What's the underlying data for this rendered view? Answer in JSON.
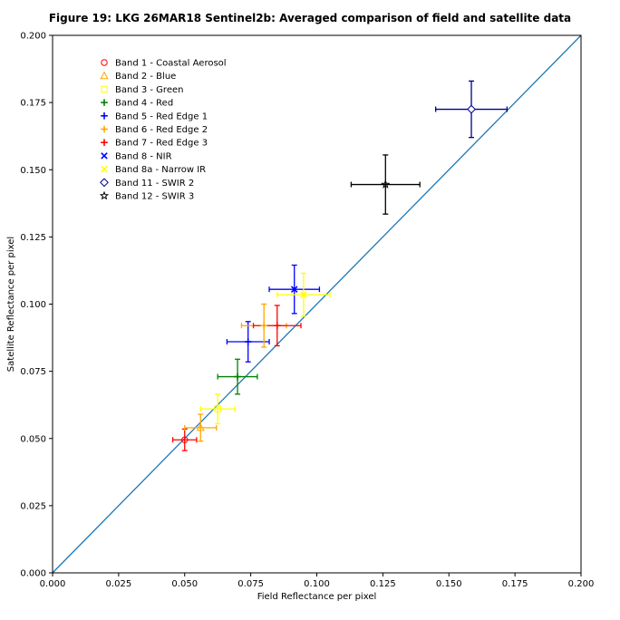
{
  "chart_data": {
    "type": "scatter",
    "title": "Figure 19: LKG 26MAR18  Sentinel2b: Averaged comparison of field and satellite data",
    "xlabel": "Field Reflectance per pixel",
    "ylabel": "Satellite Reflectance per pixel",
    "xlim": [
      0.0,
      0.2
    ],
    "ylim": [
      0.0,
      0.2
    ],
    "xticks": [
      "0.000",
      "0.025",
      "0.050",
      "0.075",
      "0.100",
      "0.125",
      "0.150",
      "0.175",
      "0.200"
    ],
    "yticks": [
      "0.000",
      "0.025",
      "0.050",
      "0.075",
      "0.100",
      "0.125",
      "0.150",
      "0.175",
      "0.200"
    ],
    "grid": false,
    "legend_position": "upper-left",
    "reference_line": {
      "from": [
        0.0,
        0.0
      ],
      "to": [
        0.2,
        0.2
      ],
      "color": "#1f77b4"
    },
    "series": [
      {
        "name": "Band 1 - Coastal Aerosol",
        "marker": "circle",
        "color": "#ff0000",
        "ecolor": "#ff0000",
        "x": 0.05,
        "y": 0.0495,
        "xerr": 0.0045,
        "yerr": 0.004
      },
      {
        "name": "Band 2 - Blue",
        "marker": "triangle",
        "color": "#ffa500",
        "ecolor": "#ffa500",
        "x": 0.056,
        "y": 0.054,
        "xerr": 0.006,
        "yerr": 0.005
      },
      {
        "name": "Band 3 - Green",
        "marker": "square",
        "color": "#ffff00",
        "ecolor": "#ffff00",
        "x": 0.0625,
        "y": 0.061,
        "xerr": 0.0065,
        "yerr": 0.0055
      },
      {
        "name": "Band 4 - Red",
        "marker": "plus",
        "color": "#008000",
        "ecolor": "#008000",
        "x": 0.07,
        "y": 0.073,
        "xerr": 0.0075,
        "yerr": 0.0065
      },
      {
        "name": "Band 5 - Red Edge 1",
        "marker": "plus",
        "color": "#0000ff",
        "ecolor": "#0000ff",
        "x": 0.074,
        "y": 0.086,
        "xerr": 0.008,
        "yerr": 0.0075
      },
      {
        "name": "Band 6 - Red Edge 2",
        "marker": "plus",
        "color": "#ffa500",
        "ecolor": "#ffa500",
        "x": 0.08,
        "y": 0.092,
        "xerr": 0.0085,
        "yerr": 0.008
      },
      {
        "name": "Band 7 - Red Edge 3",
        "marker": "plus",
        "color": "#ff0000",
        "ecolor": "#ff0000",
        "x": 0.085,
        "y": 0.092,
        "xerr": 0.009,
        "yerr": 0.0075
      },
      {
        "name": "Band 8 - NIR",
        "marker": "x",
        "color": "#0000ff",
        "ecolor": "#0000ff",
        "x": 0.0915,
        "y": 0.1055,
        "xerr": 0.0095,
        "yerr": 0.009
      },
      {
        "name": "Band 8a - Narrow IR",
        "marker": "x",
        "color": "#ffff00",
        "ecolor": "#ffff00",
        "x": 0.095,
        "y": 0.1035,
        "xerr": 0.01,
        "yerr": 0.008
      },
      {
        "name": "Band 11 - SWIR 2",
        "marker": "diamond",
        "color": "#0000ff",
        "ecolor": "#00008b",
        "x": 0.1585,
        "y": 0.1725,
        "xerr": 0.0135,
        "yerr": 0.0105
      },
      {
        "name": "Band 12 - SWIR 3",
        "marker": "star",
        "color": "#000000",
        "ecolor": "#000000",
        "x": 0.126,
        "y": 0.1445,
        "xerr": 0.013,
        "yerr": 0.011
      }
    ]
  }
}
